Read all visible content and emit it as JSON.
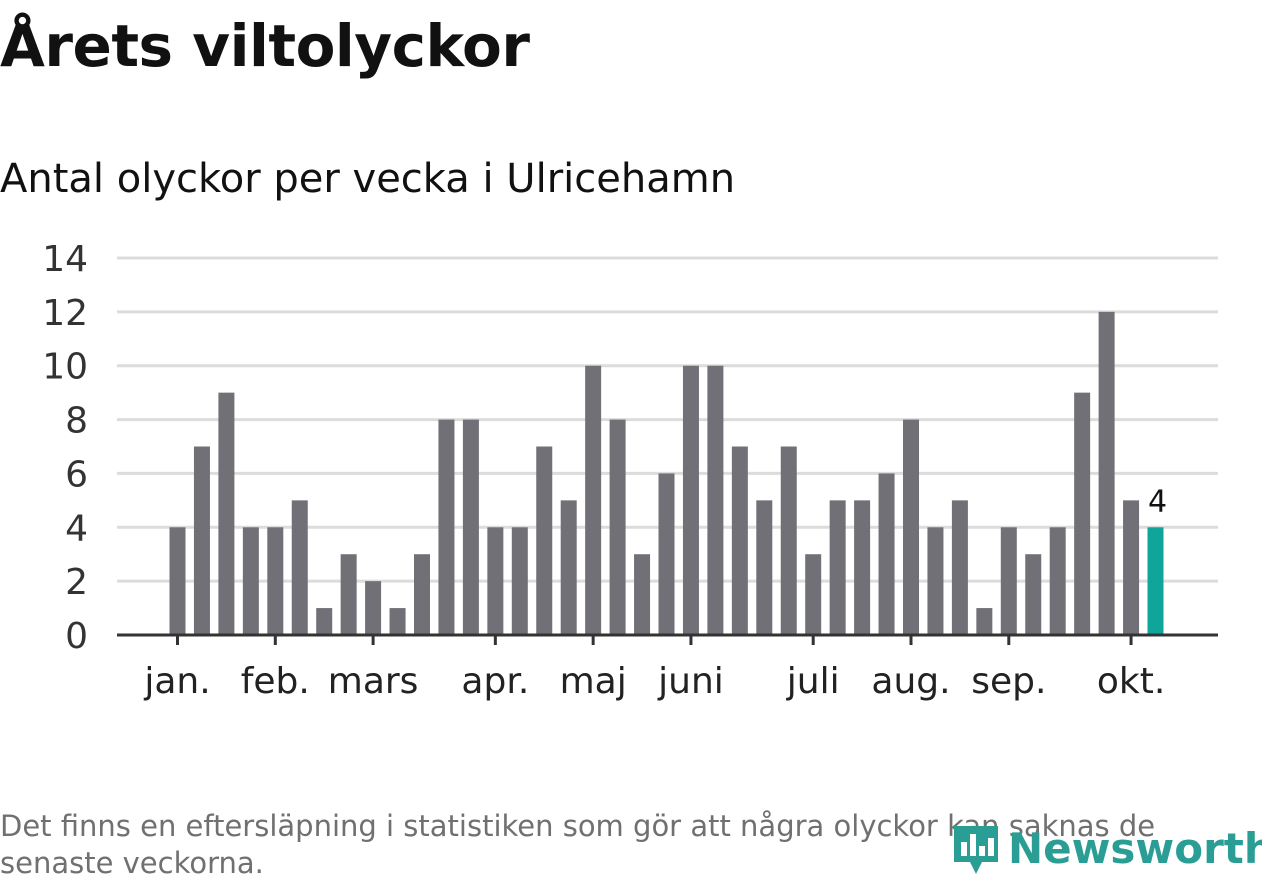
{
  "header": {
    "title": "Årets viltolyckor",
    "subtitle": "Antal olyckor per vecka i Ulricehamn"
  },
  "footnote": "Det finns en eftersläpning i statistiken som gör att några olyckor kan saknas de senaste veckorna.",
  "logo": {
    "text": "Newsworthy",
    "icon": "newsworthy-logo-icon",
    "color": "#2a9d95"
  },
  "chart_data": {
    "type": "bar",
    "title": "Antal olyckor per vecka i Ulricehamn",
    "xlabel": "",
    "ylabel": "",
    "ylim": [
      0,
      14
    ],
    "yticks": [
      0,
      2,
      4,
      6,
      8,
      10,
      12,
      14
    ],
    "grid": true,
    "legend": "none",
    "values": [
      4,
      7,
      9,
      4,
      4,
      5,
      1,
      3,
      2,
      1,
      3,
      8,
      8,
      4,
      4,
      7,
      5,
      10,
      8,
      3,
      6,
      10,
      10,
      7,
      5,
      7,
      3,
      5,
      5,
      6,
      8,
      4,
      5,
      1,
      4,
      3,
      4,
      9,
      12,
      5,
      4
    ],
    "month_labels": [
      {
        "label": "jan.",
        "bar_index": 0
      },
      {
        "label": "feb.",
        "bar_index": 4
      },
      {
        "label": "mars",
        "bar_index": 8
      },
      {
        "label": "apr.",
        "bar_index": 13
      },
      {
        "label": "maj",
        "bar_index": 17
      },
      {
        "label": "juni",
        "bar_index": 21
      },
      {
        "label": "juli",
        "bar_index": 26
      },
      {
        "label": "aug.",
        "bar_index": 30
      },
      {
        "label": "sep.",
        "bar_index": 34
      },
      {
        "label": "okt.",
        "bar_index": 39
      }
    ],
    "highlight": {
      "bar_index": 40,
      "label": "4"
    },
    "colors": {
      "bar": "#717077",
      "highlight": "#0fa59b",
      "grid": "#dcdcdc",
      "axis": "#333333"
    }
  }
}
